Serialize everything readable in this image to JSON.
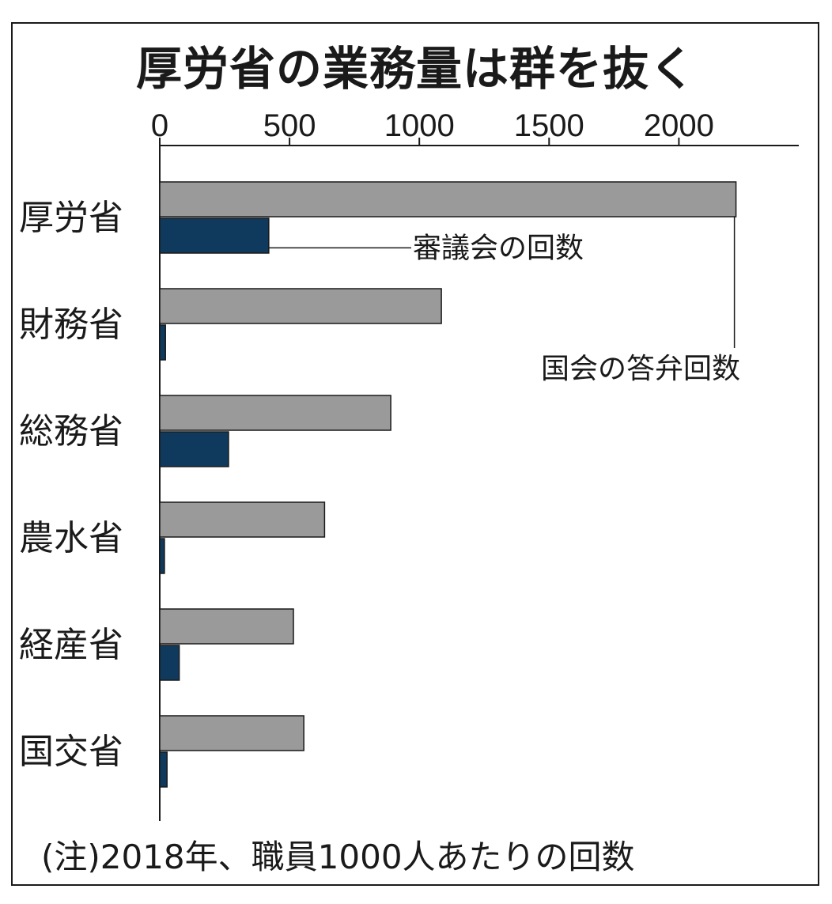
{
  "chart_data": {
    "type": "bar",
    "orientation": "horizontal",
    "title": "厚労省の業務量は群を抜く",
    "categories": [
      "厚労省",
      "財務省",
      "総務省",
      "農水省",
      "経産省",
      "国交省"
    ],
    "series": [
      {
        "name": "国会の答弁回数",
        "color": "#9a9a9a",
        "values": [
          2220,
          1085,
          890,
          635,
          515,
          555
        ]
      },
      {
        "name": "審議会の回数",
        "color": "#0f3a5e",
        "values": [
          420,
          22,
          265,
          18,
          75,
          28
        ]
      }
    ],
    "xticks": [
      0,
      500,
      1000,
      1500,
      2000
    ],
    "xlim": [
      0,
      2470
    ],
    "note": "(注)2018年、職員1000人あたりの回数"
  }
}
